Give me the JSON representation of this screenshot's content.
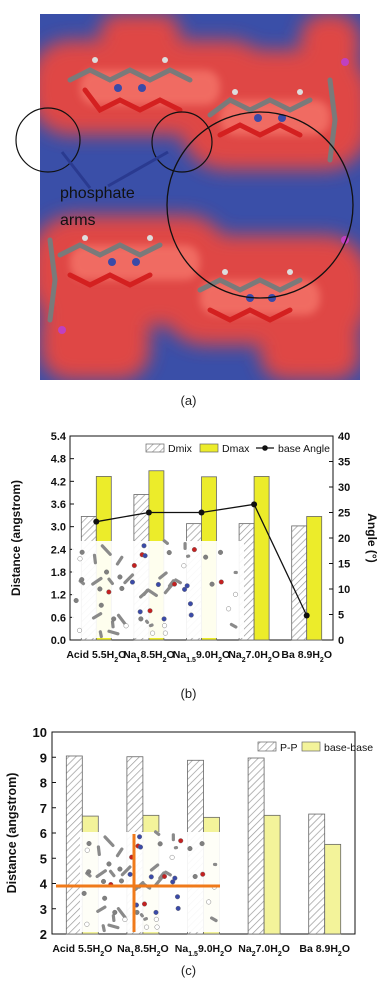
{
  "captions": {
    "a": "(a)",
    "b": "(b)",
    "c": "(c)"
  },
  "panel_a": {
    "annotation_line1": "phosphate",
    "annotation_line2": "arms",
    "colors": {
      "background": "#3a4fa8",
      "density": "#e8473f",
      "bond_carbon": "#7a7a7a",
      "bond_oxygen": "#d42020",
      "atom_nitrogen": "#3a4aa8"
    }
  },
  "chart_data": [
    {
      "type": "bar",
      "panel": "b",
      "categories": [
        "Acid 5.5H2O",
        "Na18.5H2O",
        "Na1.59.0H2O",
        "Na27.0H2O",
        "Ba 8.9H2O"
      ],
      "category_labels": [
        {
          "pre": "Acid 5.5H",
          "sub": "2",
          "post": "O"
        },
        {
          "pre": "Na",
          "sub": "1",
          "mid": "8.5H",
          "sub2": "2",
          "post": "O"
        },
        {
          "pre": "Na",
          "sub": "1.5",
          "mid": "9.0H",
          "sub2": "2",
          "post": "O"
        },
        {
          "pre": "Na",
          "sub": "2",
          "mid": "7.0H",
          "sub2": "2",
          "post": "O"
        },
        {
          "pre": "Ba 8.9H",
          "sub": "2",
          "post": "O"
        }
      ],
      "series": [
        {
          "name": "Dmix",
          "values": [
            3.27,
            3.85,
            3.08,
            3.08,
            3.02
          ]
        },
        {
          "name": "Dmax",
          "values": [
            4.33,
            4.48,
            4.32,
            4.33,
            3.27
          ]
        }
      ],
      "line_series": {
        "name": "base Angle",
        "values": [
          23.2,
          25.0,
          25.0,
          26.6,
          4.8
        ]
      },
      "ylabel": "Distance (angstrom)",
      "y2label": "Angle (°)",
      "ylim": [
        0,
        5.4
      ],
      "y2lim": [
        0,
        40
      ],
      "yticks": [
        "0.0",
        "0.6",
        "1.2",
        "1.8",
        "2.4",
        "3.0",
        "3.6",
        "4.2",
        "4.8",
        "5.4"
      ],
      "y2ticks": [
        "0",
        "5",
        "10",
        "15",
        "20",
        "25",
        "30",
        "35",
        "40"
      ],
      "legend": [
        "Dmix",
        "Dmax",
        "base Angle"
      ],
      "colors": {
        "hatch": "#9a9a9a",
        "yellow": "#ecec2a",
        "line": "#111111"
      }
    },
    {
      "type": "bar",
      "panel": "c",
      "categories": [
        "Acid 5.5H2O",
        "Na18.5H2O",
        "Na1.59.0H2O",
        "Na27.0H2O",
        "Ba 8.9H2O"
      ],
      "category_labels": [
        {
          "pre": "Acid 5.5H",
          "sub": "2",
          "post": "O"
        },
        {
          "pre": "Na",
          "sub": "1",
          "mid": "8.5H",
          "sub2": "2",
          "post": "O"
        },
        {
          "pre": "Na",
          "sub": "1.5",
          "mid": "9.0H",
          "sub2": "2",
          "post": "O"
        },
        {
          "pre": "Na",
          "sub": "2",
          "mid": "7.0H",
          "sub2": "2",
          "post": "O"
        },
        {
          "pre": "Ba 8.9H",
          "sub": "2",
          "post": "O"
        }
      ],
      "series": [
        {
          "name": "P-P",
          "values": [
            9.05,
            9.02,
            8.88,
            8.97,
            6.75
          ]
        },
        {
          "name": "base-base",
          "values": [
            6.67,
            6.7,
            6.62,
            6.7,
            5.55
          ]
        }
      ],
      "ylabel": "Distance (angstrom)",
      "ylim": [
        2,
        10
      ],
      "yticks": [
        "2",
        "3",
        "4",
        "5",
        "6",
        "7",
        "8",
        "9",
        "10"
      ],
      "legend": [
        "P-P",
        "base-base"
      ],
      "colors": {
        "hatch": "#9a9a9a",
        "yellow": "#f3f39a"
      }
    }
  ]
}
